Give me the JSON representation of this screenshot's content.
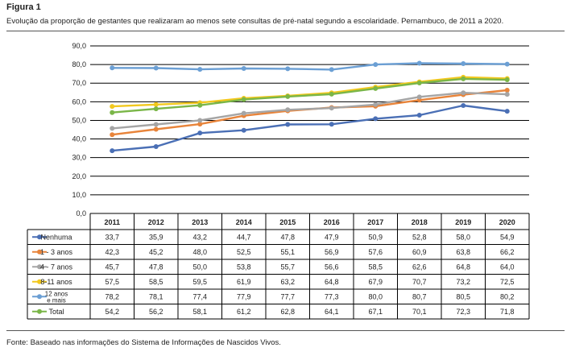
{
  "figure_label": "Figura 1",
  "title": "Evolução da proporção de gestantes que realizaram ao menos sete consultas de pré-natal segundo a escolaridade. Pernambuco, de 2011 a 2020.",
  "source": "Fonte: Baseado nas informações do Sistema de Informações de Nascidos Vivos.",
  "chart_data": {
    "type": "line",
    "x": [
      "2011",
      "2012",
      "2013",
      "2014",
      "2015",
      "2016",
      "2017",
      "2018",
      "2019",
      "2020"
    ],
    "ylim": [
      0,
      90
    ],
    "yticks": [
      "0,0",
      "10,0",
      "20,0",
      "30,0",
      "40,0",
      "50,0",
      "60,0",
      "70,0",
      "80,0",
      "90,0"
    ],
    "grid": true,
    "legend": "data-table",
    "series": [
      {
        "name": "Nenhuma",
        "color": "#4a6fb5",
        "values": [
          33.7,
          35.9,
          43.2,
          44.7,
          47.8,
          47.9,
          50.9,
          52.8,
          58.0,
          54.9
        ],
        "labels": [
          "33,7",
          "35,9",
          "43,2",
          "44,7",
          "47,8",
          "47,9",
          "50,9",
          "52,8",
          "58,0",
          "54,9"
        ]
      },
      {
        "name": "1 - 3 anos",
        "color": "#e8843a",
        "values": [
          42.3,
          45.2,
          48.0,
          52.5,
          55.1,
          56.9,
          57.6,
          60.9,
          63.8,
          66.2
        ],
        "labels": [
          "42,3",
          "45,2",
          "48,0",
          "52,5",
          "55,1",
          "56,9",
          "57,6",
          "60,9",
          "63,8",
          "66,2"
        ]
      },
      {
        "name": "4 - 7 anos",
        "color": "#a5a5a5",
        "values": [
          45.7,
          47.8,
          50.0,
          53.8,
          55.7,
          56.6,
          58.5,
          62.6,
          64.8,
          64.0
        ],
        "labels": [
          "45,7",
          "47,8",
          "50,0",
          "53,8",
          "55,7",
          "56,6",
          "58,5",
          "62,6",
          "64,8",
          "64,0"
        ]
      },
      {
        "name": "8-11 anos",
        "color": "#f2c81e",
        "values": [
          57.5,
          58.5,
          59.5,
          61.9,
          63.2,
          64.8,
          67.9,
          70.7,
          73.2,
          72.5
        ],
        "labels": [
          "57,5",
          "58,5",
          "59,5",
          "61,9",
          "63,2",
          "64,8",
          "67,9",
          "70,7",
          "73,2",
          "72,5"
        ]
      },
      {
        "name": "12 anos e mais",
        "name_lines": [
          "12 anos",
          "e mais"
        ],
        "color": "#6b9fd4",
        "values": [
          78.2,
          78.1,
          77.4,
          77.9,
          77.7,
          77.3,
          80.0,
          80.7,
          80.5,
          80.2
        ],
        "labels": [
          "78,2",
          "78,1",
          "77,4",
          "77,9",
          "77,7",
          "77,3",
          "80,0",
          "80,7",
          "80,5",
          "80,2"
        ]
      },
      {
        "name": "Total",
        "color": "#7ab648",
        "values": [
          54.2,
          56.2,
          58.1,
          61.2,
          62.8,
          64.1,
          67.1,
          70.1,
          72.3,
          71.8
        ],
        "labels": [
          "54,2",
          "56,2",
          "58,1",
          "61,2",
          "62,8",
          "64,1",
          "67,1",
          "70,1",
          "72,3",
          "71,8"
        ]
      }
    ]
  }
}
